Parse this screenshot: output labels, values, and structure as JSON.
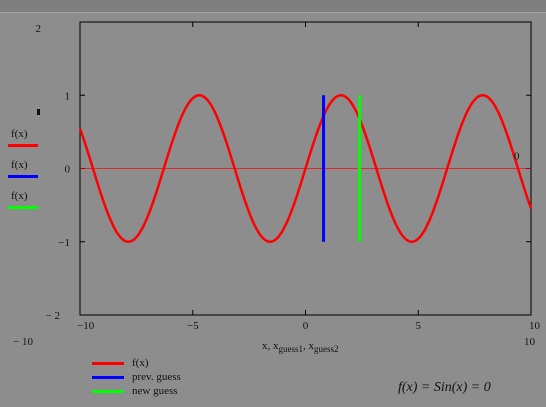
{
  "chart_data": {
    "type": "line",
    "xlim": [
      -10,
      10
    ],
    "ylim": [
      -2,
      2
    ],
    "x_ticks": [
      "−10",
      "−5",
      "0",
      "5",
      "10"
    ],
    "y_ticks": [
      "2",
      "1",
      "0",
      "−1",
      "− 2"
    ],
    "axis_min_label": "− 10",
    "axis_max_label": "10",
    "right_zero_label": "0",
    "xlabel": "x, x guess1, x guess2",
    "xlabel_parts": {
      "main": "x, x",
      "sub1": "guess1",
      "sep": ", x",
      "sub2": "guess2"
    },
    "series": [
      {
        "name": "f(x)",
        "function": "sin(x)",
        "color": "#ff0000"
      },
      {
        "name": "prev. guess",
        "x": 0.8,
        "y_range": [
          -1,
          1
        ],
        "color": "#0000ff"
      },
      {
        "name": "new guess",
        "x": 2.4,
        "y_range": [
          -1,
          1
        ],
        "color": "#00ff00"
      }
    ],
    "zero_line_color": "#ff0000",
    "grid": false
  },
  "legend_left": [
    {
      "label": "f(x)",
      "color": "#ff0000"
    },
    {
      "label": "f(x)",
      "color": "#0000ff"
    },
    {
      "label": "f(x)",
      "color": "#00ff00"
    }
  ],
  "legend_bottom": [
    {
      "label": "f(x)",
      "color": "#ff0000"
    },
    {
      "label": "prev. guess",
      "color": "#0000ff"
    },
    {
      "label": "new guess",
      "color": "#00ff00"
    }
  ],
  "formula": "f(x) = Sin(x) = 0"
}
